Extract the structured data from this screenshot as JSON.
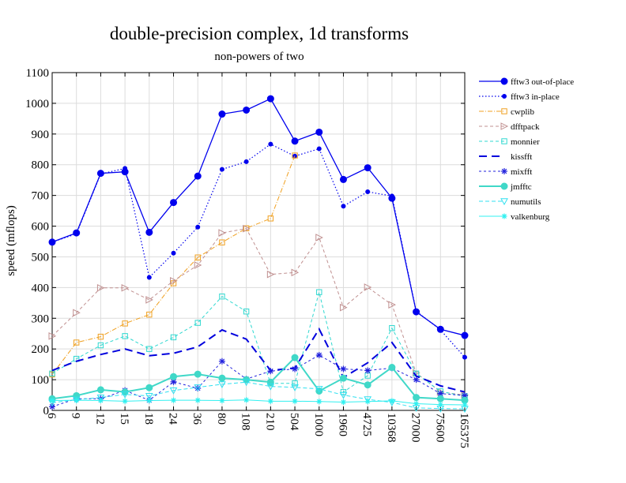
{
  "chart_data": {
    "type": "line",
    "title": "double-precision complex, 1d transforms",
    "subtitle": "non-powers of two",
    "xlabel": "",
    "ylabel": "speed (mflops)",
    "ylim": [
      0,
      1100
    ],
    "yticks": [
      "0",
      "100",
      "200",
      "300",
      "400",
      "500",
      "600",
      "700",
      "800",
      "900",
      "1000",
      "1100"
    ],
    "categories": [
      "6",
      "9",
      "12",
      "15",
      "18",
      "24",
      "36",
      "80",
      "108",
      "210",
      "504",
      "1000",
      "1960",
      "4725",
      "10368",
      "27000",
      "75600",
      "165375"
    ],
    "grid": true,
    "legend_position": "right",
    "series": [
      {
        "name": "fftw3 out-of-place",
        "color": "#0000ee",
        "dash": "",
        "width": 1.3,
        "marker": "filled-circle",
        "msize": 4,
        "values": [
          548,
          578,
          772,
          777,
          580,
          677,
          763,
          965,
          978,
          1015,
          877,
          906,
          752,
          790,
          691,
          321,
          264,
          244
        ]
      },
      {
        "name": "fftw3 in-place",
        "color": "#0000ee",
        "dash": "1.5,2.5",
        "width": 1.2,
        "marker": "filled-circle-small",
        "msize": 2.5,
        "values": [
          548,
          575,
          770,
          788,
          433,
          512,
          597,
          785,
          810,
          867,
          828,
          852,
          665,
          712,
          698,
          323,
          262,
          173
        ]
      },
      {
        "name": "cwplib",
        "color": "#f0a020",
        "dash": "6,2,1,2",
        "width": 1,
        "marker": "open-square",
        "msize": 3.2,
        "values": [
          117,
          221,
          240,
          283,
          312,
          414,
          498,
          547,
          593,
          625,
          830,
          null,
          null,
          null,
          null,
          null,
          null,
          null
        ]
      },
      {
        "name": "dfftpack",
        "color": "#c09090",
        "dash": "4,3",
        "width": 1,
        "marker": "open-triangle",
        "msize": 4,
        "values": [
          242,
          318,
          399,
          399,
          360,
          422,
          473,
          578,
          592,
          443,
          449,
          563,
          335,
          401,
          344,
          122,
          60,
          50
        ]
      },
      {
        "name": "monnier",
        "color": "#30d8d0",
        "dash": "4,3",
        "width": 1,
        "marker": "open-square",
        "msize": 3.2,
        "values": [
          120,
          168,
          212,
          242,
          200,
          238,
          285,
          371,
          322,
          88,
          88,
          385,
          60,
          113,
          268,
          120,
          62,
          46
        ]
      },
      {
        "name": "kissfft",
        "color": "#0000dd",
        "dash": "10,6",
        "width": 2,
        "marker": "none",
        "msize": 0,
        "values": [
          130,
          160,
          182,
          200,
          178,
          186,
          207,
          262,
          232,
          130,
          138,
          265,
          107,
          155,
          221,
          112,
          80,
          60
        ]
      },
      {
        "name": "mixfft",
        "color": "#2020dd",
        "dash": "3,3",
        "width": 1,
        "marker": "star",
        "msize": 4,
        "values": [
          12,
          38,
          38,
          65,
          33,
          93,
          72,
          160,
          102,
          128,
          135,
          180,
          135,
          130,
          138,
          100,
          55,
          48
        ]
      },
      {
        "name": "jmfftc",
        "color": "#40d8c8",
        "dash": "",
        "width": 2,
        "marker": "filled-circle",
        "msize": 4,
        "values": [
          38,
          48,
          67,
          60,
          74,
          110,
          118,
          105,
          100,
          92,
          172,
          63,
          105,
          83,
          140,
          42,
          38,
          33
        ]
      },
      {
        "name": "numutils",
        "color": "#30e0f0",
        "dash": "5,3",
        "width": 1,
        "marker": "open-triangle-down",
        "msize": 4,
        "values": [
          25,
          35,
          42,
          52,
          47,
          65,
          75,
          85,
          92,
          78,
          75,
          70,
          50,
          36,
          26,
          8,
          6,
          5
        ]
      },
      {
        "name": "valkenburg",
        "color": "#30f0f0",
        "dash": "",
        "width": 1,
        "marker": "asterisk",
        "msize": 3.5,
        "values": [
          32,
          33,
          32,
          30,
          32,
          33,
          33,
          32,
          34,
          30,
          30,
          29,
          27,
          29,
          31,
          22,
          19,
          18
        ]
      }
    ]
  }
}
